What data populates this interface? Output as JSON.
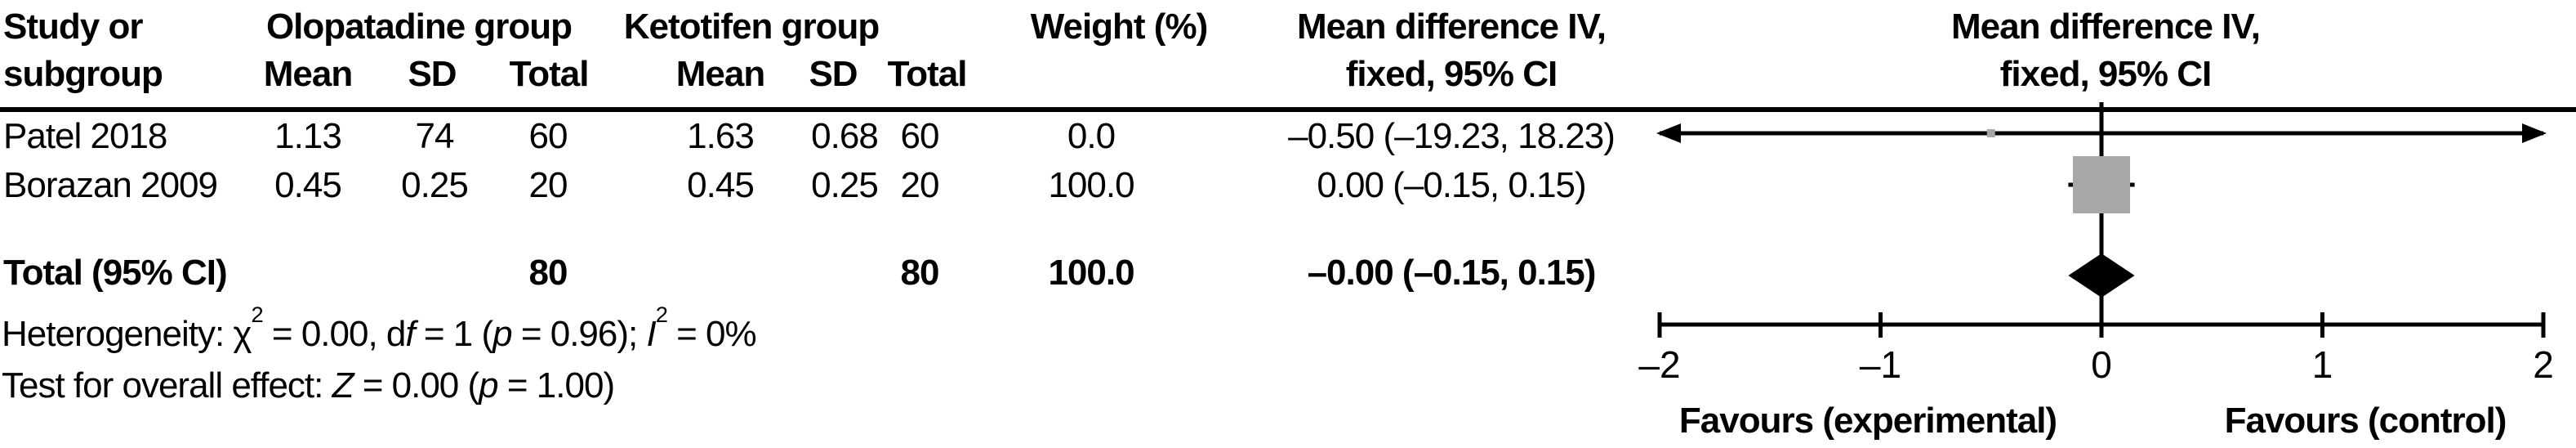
{
  "header": {
    "study_l1": "Study or",
    "study_l2": "subgroup",
    "olopatadine_group": "Olopatadine group",
    "ketotifen_group": "Ketotifen group",
    "mean": "Mean",
    "sd": "SD",
    "total": "Total",
    "weight": "Weight (%)",
    "md_l1": "Mean difference IV,",
    "md_l2": "fixed, 95% CI"
  },
  "chart_data": {
    "type": "forest",
    "effect_measure": "Mean difference IV, fixed, 95% CI",
    "xlim": [
      -2,
      2
    ],
    "x_tick_values": [
      -2,
      -1,
      0,
      1,
      2
    ],
    "x_ticks": [
      "–2",
      "–1",
      "0",
      "1",
      "2"
    ],
    "favours_left": "Favours (experimental)",
    "favours_right": "Favours (control)",
    "marker_color": "#a8a8a8",
    "line_color": "#000000",
    "studies": [
      {
        "name": "Patel 2018",
        "olopatadine": {
          "mean": "1.13",
          "sd": "74",
          "total": "60"
        },
        "ketotifen": {
          "mean": "1.63",
          "sd": "0.68",
          "total": "60"
        },
        "weight": "0.0",
        "weight_value": 0.0,
        "md_text": "–0.50 (–19.23, 18.23)",
        "estimate": -0.5,
        "ci_low": -19.23,
        "ci_high": 18.23
      },
      {
        "name": "Borazan 2009",
        "olopatadine": {
          "mean": "0.45",
          "sd": "0.25",
          "total": "20"
        },
        "ketotifen": {
          "mean": "0.45",
          "sd": "0.25",
          "total": "20"
        },
        "weight": "100.0",
        "weight_value": 100.0,
        "md_text": "0.00 (–0.15, 0.15)",
        "estimate": 0.0,
        "ci_low": -0.15,
        "ci_high": 0.15
      }
    ],
    "total": {
      "label": "Total (95% CI)",
      "olopatadine_total": "80",
      "ketotifen_total": "80",
      "weight": "100.0",
      "md_text": "–0.00 (–0.15, 0.15)",
      "estimate": 0.0,
      "ci_low": -0.15,
      "ci_high": 0.15
    }
  },
  "notes": {
    "het": {
      "p1": "Heterogeneity: χ",
      "sup1": "2",
      "p2": " = 0.00, d",
      "it1": "f",
      "p3": " = 1 (",
      "it2": "p",
      "p4": " = 0.96); ",
      "it3": "I",
      "sup2": "2",
      "p5": " = 0%"
    },
    "overall": {
      "p1": "Test for overall effect: ",
      "it1": "Z",
      "p2": " = 0.00 (",
      "it2": "p",
      "p3": " = 1.00)"
    }
  }
}
